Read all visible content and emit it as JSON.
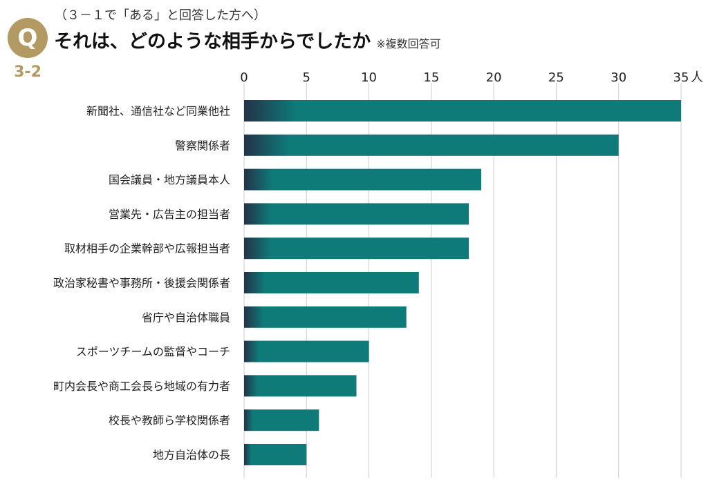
{
  "header": {
    "note": "（３－１で「ある」と回答した方へ）",
    "title": "それは、どのような相手からでしたか",
    "subtitle": "※複数回答可",
    "q_icon": "Q",
    "q_number": "3-2"
  },
  "colors": {
    "bar_start": "#233348",
    "bar_end": "#0e7b79",
    "gold": "#b39a62",
    "grid": "#cccccc"
  },
  "chart_data": {
    "type": "bar",
    "orientation": "horizontal",
    "title": "それは、どのような相手からでしたか",
    "categories": [
      "新聞社、通信社など同業他社",
      "警察関係者",
      "国会議員・地方議員本人",
      "営業先・広告主の担当者",
      "取材相手の企業幹部や広報担当者",
      "政治家秘書や事務所・後援会関係者",
      "省庁や自治体職員",
      "スポーツチームの監督やコーチ",
      "町内会長や商工会長ら地域の有力者",
      "校長や教師ら学校関係者",
      "地方自治体の長"
    ],
    "values": [
      35,
      30,
      19,
      18,
      18,
      14,
      13,
      10,
      9,
      6,
      5
    ],
    "xlim": [
      0,
      35
    ],
    "x_ticks": [
      0,
      5,
      10,
      15,
      20,
      25,
      30,
      35
    ],
    "x_unit": "人",
    "grid": true
  }
}
